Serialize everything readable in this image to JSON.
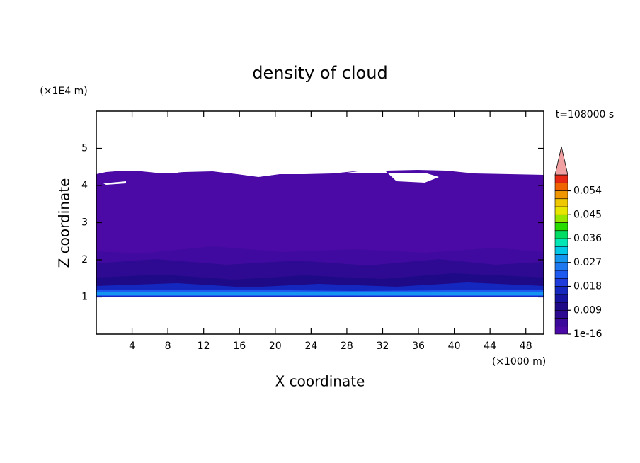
{
  "chart_data": {
    "type": "contour",
    "title": "density of cloud",
    "x_label": "X coordinate",
    "y_label": "Z coordinate",
    "x_unit": "(×1000 m)",
    "y_unit": "(×1E4 m)",
    "annotation": "t=108000 s",
    "xlim": [
      0,
      50
    ],
    "xticks": [
      4,
      8,
      12,
      16,
      20,
      24,
      28,
      32,
      36,
      40,
      44,
      48
    ],
    "ylim": [
      0,
      6
    ],
    "yticks": [
      1,
      2,
      3,
      4,
      5
    ],
    "colorbar": {
      "clim": [
        0,
        0.06
      ],
      "ticks": [
        1e-16,
        0.009,
        0.018,
        0.027,
        0.036,
        0.045,
        0.054
      ],
      "colors": [
        "#4b0aa5",
        "#3c0a9b",
        "#2d0a91",
        "#1e0a87",
        "#1414a0",
        "#1428c0",
        "#1e3cdc",
        "#1e5af0",
        "#1e78f0",
        "#1496f0",
        "#00c8e6",
        "#00e6b4",
        "#00dc64",
        "#28dc00",
        "#96e600",
        "#e6e600",
        "#f0c800",
        "#f09600",
        "#f06400",
        "#e62814"
      ],
      "extend_color": "#f0a0a0"
    }
  }
}
